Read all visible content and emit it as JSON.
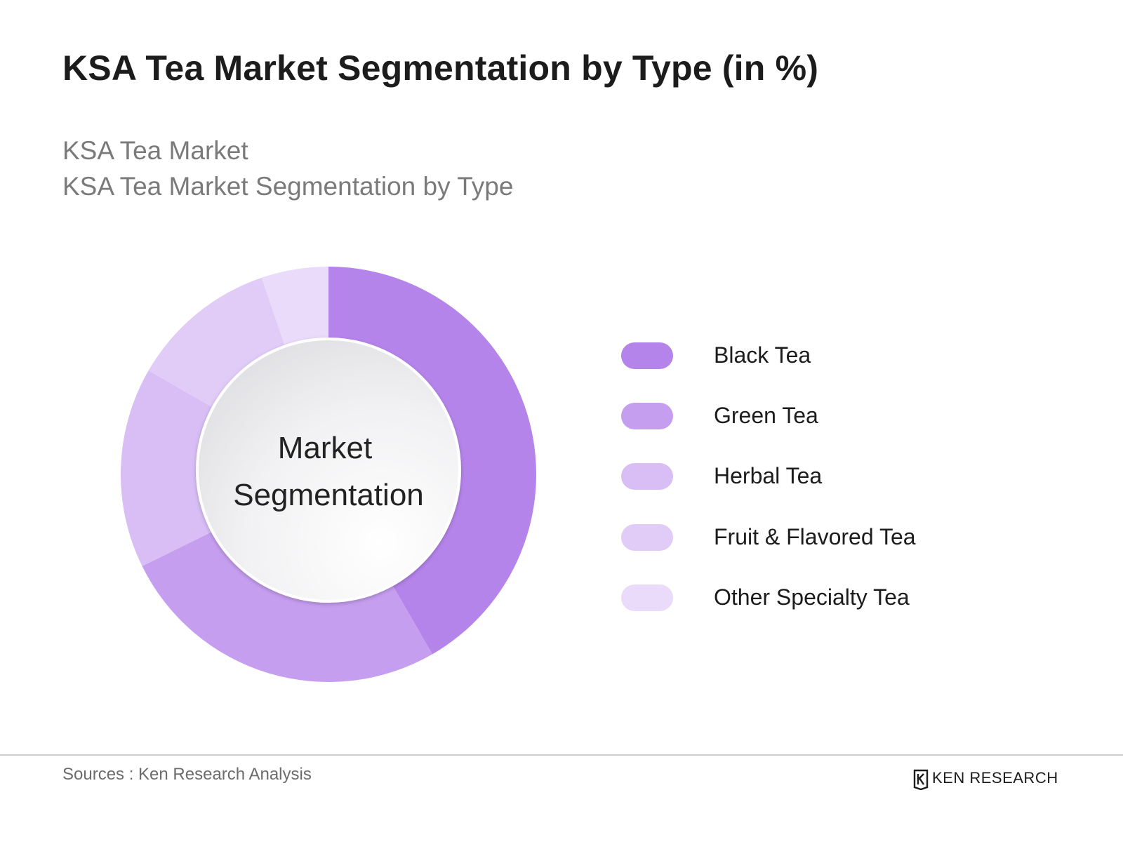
{
  "header": {
    "title": "KSA Tea Market Segmentation by Type (in %)",
    "subtitle_line1": "KSA Tea Market",
    "subtitle_line2": "KSA Tea Market Segmentation by Type"
  },
  "chart_data": {
    "type": "pie",
    "center_label_line1": "Market",
    "center_label_line2": "Segmentation",
    "legend_position": "right",
    "categories": [
      "Black Tea",
      "Green Tea",
      "Herbal Tea",
      "Fruit & Flavored Tea",
      "Other Specialty Tea"
    ],
    "values": [
      40,
      25,
      15,
      11,
      5
    ],
    "colors": [
      "#b584ea",
      "#c69ef0",
      "#d8bef5",
      "#e1ccf7",
      "#eadbfa"
    ]
  },
  "footer": {
    "source": "Sources : Ken Research Analysis",
    "brand": "KEN RESEARCH"
  }
}
